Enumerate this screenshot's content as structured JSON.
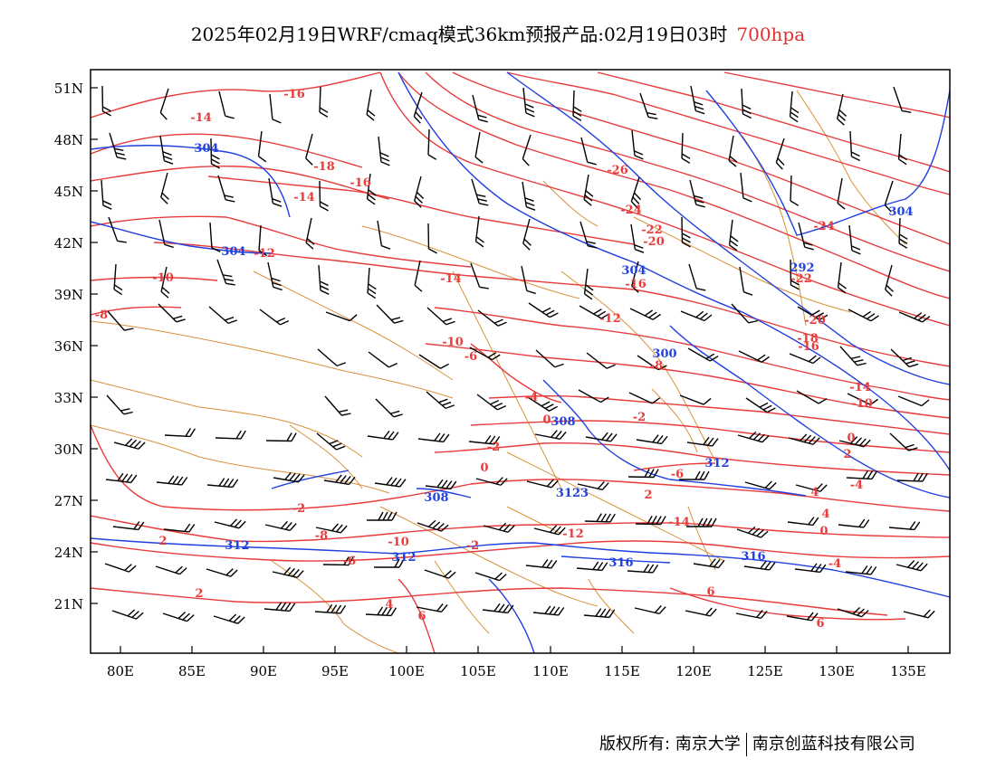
{
  "title": {
    "main": "2025年02月19日WRF/cmaq模式36km预报产品:02月19日03时",
    "level": "700hpa"
  },
  "axes": {
    "lat_labels": [
      "51N",
      "48N",
      "45N",
      "42N",
      "39N",
      "36N",
      "33N",
      "30N",
      "27N",
      "24N",
      "21N"
    ],
    "lon_labels": [
      "80E",
      "85E",
      "90E",
      "95E",
      "100E",
      "105E",
      "110E",
      "115E",
      "120E",
      "125E",
      "130E",
      "135E"
    ]
  },
  "colors": {
    "temperature": "#e83c3c",
    "height": "#2040e0",
    "border": "#d9913a",
    "wind": "#000000"
  },
  "temperature_labels": [
    "-16",
    "-14",
    "-18",
    "-16",
    "-14",
    "-12",
    "-10",
    "-8",
    "-26",
    "-24",
    "-22",
    "-24",
    "-20",
    "-22",
    "-20",
    "-18",
    "-16",
    "-16",
    "-14",
    "-12",
    "-14",
    "-10",
    "-10",
    "-8",
    "-6",
    "-4",
    "-2",
    "0",
    "-2",
    "0",
    "2",
    "4",
    "-4",
    "-2",
    "0",
    "2",
    "-6",
    "-8",
    "-6",
    "-10",
    "-12",
    "-14",
    "2",
    "4",
    "6",
    "6",
    "6",
    "2",
    "-4",
    "4",
    "0",
    "-2"
  ],
  "height_labels": [
    "304",
    "304",
    "304",
    "304",
    "292",
    "300",
    "308",
    "308",
    "312",
    "312",
    "316",
    "316",
    "312",
    "3123"
  ],
  "footer": {
    "left": "版权所有: 南京大学",
    "right": "南京创蓝科技有限公司"
  }
}
